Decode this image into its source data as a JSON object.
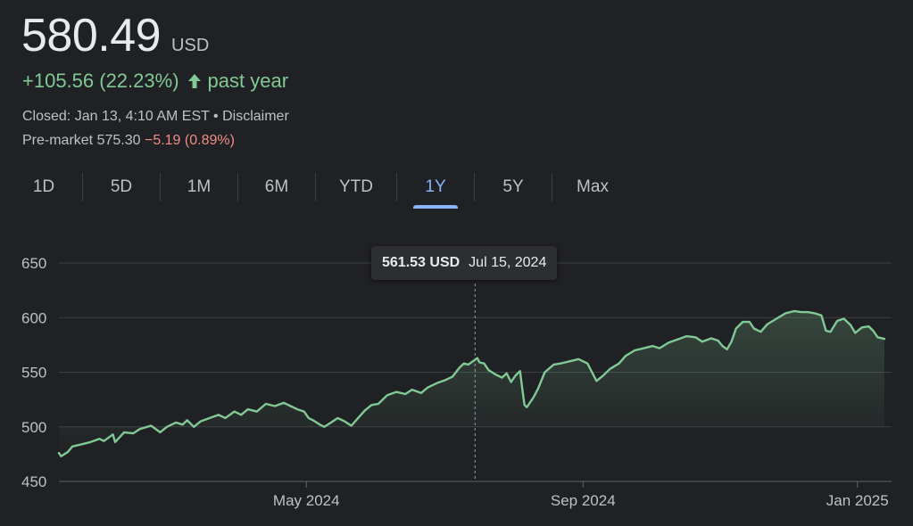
{
  "header": {
    "price": "580.49",
    "currency": "USD",
    "change": "+105.56 (22.23%)",
    "change_direction_icon": "arrow-up-icon",
    "change_period": "past year",
    "closed": "Closed: Jan 13, 4:10 AM EST • Disclaimer",
    "premarket_label": "Pre-market 575.30",
    "premarket_change": "−5.19 (0.89%)"
  },
  "tabs": [
    {
      "label": "1D"
    },
    {
      "label": "5D"
    },
    {
      "label": "1M"
    },
    {
      "label": "6M"
    },
    {
      "label": "YTD"
    },
    {
      "label": "1Y",
      "active": true
    },
    {
      "label": "5Y"
    },
    {
      "label": "Max"
    }
  ],
  "tooltip": {
    "price": "561.53 USD",
    "date": "Jul 15, 2024"
  },
  "colors": {
    "line": "#81c995",
    "positive": "#81c995",
    "negative": "#f28b82",
    "accent": "#8ab4f8",
    "background": "#202124"
  },
  "chart_data": {
    "type": "area",
    "ylim": [
      450,
      650
    ],
    "yticks": [
      450,
      500,
      550,
      600,
      650
    ],
    "ytick_labels": [
      "450",
      "500",
      "550",
      "600",
      "650"
    ],
    "xticks": [
      {
        "label": "May 2024",
        "x": "2024-05-01"
      },
      {
        "label": "Sep 2024",
        "x": "2024-09-01"
      },
      {
        "label": "Jan 2025",
        "x": "2025-01-01"
      }
    ],
    "xlim": [
      "2024-01-12",
      "2025-01-13"
    ],
    "grid": true,
    "hover_x": "2024-07-15",
    "series": [
      {
        "points": [
          [
            "2024-01-12",
            476
          ],
          [
            "2024-01-13",
            473
          ],
          [
            "2024-01-16",
            477
          ],
          [
            "2024-01-18",
            482
          ],
          [
            "2024-01-22",
            484
          ],
          [
            "2024-01-26",
            486
          ],
          [
            "2024-01-30",
            489
          ],
          [
            "2024-02-01",
            487
          ],
          [
            "2024-02-05",
            493
          ],
          [
            "2024-02-06",
            486
          ],
          [
            "2024-02-10",
            495
          ],
          [
            "2024-02-14",
            494
          ],
          [
            "2024-02-17",
            498
          ],
          [
            "2024-02-22",
            501
          ],
          [
            "2024-02-26",
            495
          ],
          [
            "2024-02-29",
            500
          ],
          [
            "2024-03-04",
            504
          ],
          [
            "2024-03-07",
            502
          ],
          [
            "2024-03-09",
            506
          ],
          [
            "2024-03-12",
            500
          ],
          [
            "2024-03-15",
            505
          ],
          [
            "2024-03-19",
            508
          ],
          [
            "2024-03-23",
            511
          ],
          [
            "2024-03-26",
            508
          ],
          [
            "2024-03-30",
            514
          ],
          [
            "2024-04-02",
            511
          ],
          [
            "2024-04-05",
            516
          ],
          [
            "2024-04-09",
            514
          ],
          [
            "2024-04-13",
            521
          ],
          [
            "2024-04-17",
            519
          ],
          [
            "2024-04-21",
            522
          ],
          [
            "2024-04-24",
            519
          ],
          [
            "2024-04-27",
            516
          ],
          [
            "2024-04-30",
            514
          ],
          [
            "2024-05-02",
            508
          ],
          [
            "2024-05-04",
            506
          ],
          [
            "2024-05-07",
            502
          ],
          [
            "2024-05-09",
            500
          ],
          [
            "2024-05-12",
            504
          ],
          [
            "2024-05-15",
            508
          ],
          [
            "2024-05-18",
            505
          ],
          [
            "2024-05-21",
            501
          ],
          [
            "2024-05-24",
            508
          ],
          [
            "2024-05-27",
            515
          ],
          [
            "2024-05-30",
            520
          ],
          [
            "2024-06-02",
            521
          ],
          [
            "2024-06-06",
            529
          ],
          [
            "2024-06-10",
            532
          ],
          [
            "2024-06-14",
            530
          ],
          [
            "2024-06-17",
            534
          ],
          [
            "2024-06-21",
            531
          ],
          [
            "2024-06-24",
            536
          ],
          [
            "2024-06-28",
            540
          ],
          [
            "2024-07-02",
            543
          ],
          [
            "2024-07-05",
            546
          ],
          [
            "2024-07-08",
            554
          ],
          [
            "2024-07-10",
            558
          ],
          [
            "2024-07-12",
            557
          ],
          [
            "2024-07-14",
            560
          ],
          [
            "2024-07-15",
            561.53
          ],
          [
            "2024-07-16",
            563
          ],
          [
            "2024-07-17",
            559
          ],
          [
            "2024-07-19",
            558
          ],
          [
            "2024-07-21",
            552
          ],
          [
            "2024-07-24",
            548
          ],
          [
            "2024-07-27",
            545
          ],
          [
            "2024-07-29",
            549
          ],
          [
            "2024-07-31",
            541
          ],
          [
            "2024-08-02",
            547
          ],
          [
            "2024-08-04",
            551
          ],
          [
            "2024-08-05",
            535
          ],
          [
            "2024-08-06",
            520
          ],
          [
            "2024-08-07",
            518
          ],
          [
            "2024-08-08",
            521
          ],
          [
            "2024-08-10",
            527
          ],
          [
            "2024-08-12",
            535
          ],
          [
            "2024-08-15",
            550
          ],
          [
            "2024-08-19",
            557
          ],
          [
            "2024-08-22",
            558
          ],
          [
            "2024-08-26",
            560
          ],
          [
            "2024-08-30",
            562
          ],
          [
            "2024-09-03",
            558
          ],
          [
            "2024-09-05",
            550
          ],
          [
            "2024-09-07",
            542
          ],
          [
            "2024-09-10",
            547
          ],
          [
            "2024-09-13",
            553
          ],
          [
            "2024-09-17",
            558
          ],
          [
            "2024-09-20",
            565
          ],
          [
            "2024-09-24",
            570
          ],
          [
            "2024-09-28",
            572
          ],
          [
            "2024-10-02",
            574
          ],
          [
            "2024-10-05",
            572
          ],
          [
            "2024-10-09",
            577
          ],
          [
            "2024-10-13",
            580
          ],
          [
            "2024-10-17",
            583
          ],
          [
            "2024-10-21",
            582
          ],
          [
            "2024-10-24",
            578
          ],
          [
            "2024-10-28",
            581
          ],
          [
            "2024-10-31",
            579
          ],
          [
            "2024-11-02",
            574
          ],
          [
            "2024-11-04",
            571
          ],
          [
            "2024-11-06",
            578
          ],
          [
            "2024-11-08",
            590
          ],
          [
            "2024-11-11",
            596
          ],
          [
            "2024-11-14",
            596
          ],
          [
            "2024-11-16",
            590
          ],
          [
            "2024-11-19",
            587
          ],
          [
            "2024-11-22",
            594
          ],
          [
            "2024-11-26",
            599
          ],
          [
            "2024-11-30",
            604
          ],
          [
            "2024-12-04",
            606
          ],
          [
            "2024-12-07",
            605
          ],
          [
            "2024-12-10",
            605
          ],
          [
            "2024-12-13",
            604
          ],
          [
            "2024-12-16",
            602
          ],
          [
            "2024-12-18",
            588
          ],
          [
            "2024-12-20",
            587
          ],
          [
            "2024-12-23",
            597
          ],
          [
            "2024-12-26",
            599
          ],
          [
            "2024-12-29",
            593
          ],
          [
            "2024-12-31",
            586
          ],
          [
            "2025-01-03",
            591
          ],
          [
            "2025-01-06",
            592
          ],
          [
            "2025-01-08",
            588
          ],
          [
            "2025-01-10",
            582
          ],
          [
            "2025-01-13",
            580.49
          ]
        ]
      }
    ]
  }
}
